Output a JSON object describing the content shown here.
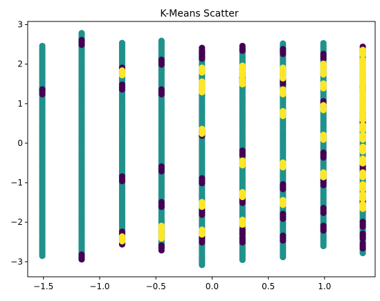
{
  "chart_data": {
    "type": "scatter",
    "title": "K-Means Scatter",
    "xlabel": "",
    "ylabel": "",
    "xlim": [
      -1.64,
      1.45
    ],
    "ylim": [
      -3.38,
      3.08
    ],
    "grid": false,
    "legend": false,
    "x_ticks": [
      {
        "value": -1.5,
        "label": "−1.5"
      },
      {
        "value": -1.0,
        "label": "−1.0"
      },
      {
        "value": -0.5,
        "label": "−0.5"
      },
      {
        "value": 0.0,
        "label": "0.0"
      },
      {
        "value": 0.5,
        "label": "0.5"
      },
      {
        "value": 1.0,
        "label": "1.0"
      }
    ],
    "y_ticks": [
      {
        "value": -3,
        "label": "−3"
      },
      {
        "value": -2,
        "label": "−2"
      },
      {
        "value": -1,
        "label": "−1"
      },
      {
        "value": 0,
        "label": "0"
      },
      {
        "value": 1,
        "label": "1"
      },
      {
        "value": 2,
        "label": "2"
      },
      {
        "value": 3,
        "label": "3"
      }
    ],
    "cluster_colors": [
      "#440154",
      "#21918c",
      "#fde725"
    ],
    "columns": [
      {
        "x": -1.51,
        "teal": [
          -2.85,
          2.48
        ],
        "purple": [
          1.3
        ],
        "yellow": []
      },
      {
        "x": -1.16,
        "teal": [
          -2.93,
          2.8
        ],
        "purple": [
          2.55,
          -2.88
        ],
        "yellow": []
      },
      {
        "x": -0.8,
        "teal": [
          -2.55,
          2.55
        ],
        "purple": [
          1.85,
          1.42,
          -0.9,
          -2.3,
          -2.5
        ],
        "yellow": [
          1.78,
          -2.42
        ]
      },
      {
        "x": -0.45,
        "teal": [
          -2.63,
          2.62
        ],
        "purple": [
          2.05,
          1.3,
          -0.65,
          -1.55,
          -2.65
        ],
        "yellow": [
          -2.15,
          -2.35
        ]
      },
      {
        "x": -0.09,
        "teal": [
          -3.08,
          2.36
        ],
        "purple": [
          2.35,
          2.2,
          0.25,
          -0.95,
          -1.75,
          -2.45
        ],
        "yellow": [
          1.85,
          1.5,
          1.35,
          0.3,
          -1.55,
          -2.25
        ]
      },
      {
        "x": 0.27,
        "teal": [
          -2.95,
          2.44
        ],
        "purple": [
          2.4,
          1.6,
          -0.25,
          -1.45,
          -2.25,
          -2.45
        ],
        "yellow": [
          1.9,
          1.75,
          1.55,
          -0.5,
          -1.3,
          -2.0
        ]
      },
      {
        "x": 0.63,
        "teal": [
          -2.88,
          2.52
        ],
        "purple": [
          2.32,
          1.55,
          -1.1,
          -1.85,
          -2.4
        ],
        "yellow": [
          1.85,
          1.7,
          1.3,
          0.75,
          -0.55,
          -1.5
        ]
      },
      {
        "x": 0.99,
        "teal": [
          -2.6,
          2.54
        ],
        "purple": [
          2.2,
          1.0,
          -0.3,
          -1.0,
          -1.7,
          -2.15
        ],
        "yellow": [
          1.95,
          1.8,
          1.45,
          0.9,
          0.15,
          -0.8
        ]
      },
      {
        "x": 1.34,
        "teal": [
          -2.78,
          2.35
        ],
        "purple": [
          2.38,
          1.4,
          0.55,
          -0.65,
          -1.45,
          -2.05,
          -2.35,
          -2.6
        ],
        "yellow": [
          2.3,
          2.05,
          1.9,
          1.75,
          1.6,
          1.45,
          1.3,
          1.15,
          1.0,
          0.85,
          0.65,
          0.4,
          0.15,
          -0.15,
          -0.45,
          -0.8,
          -1.1,
          -1.35,
          -1.6
        ]
      }
    ]
  }
}
